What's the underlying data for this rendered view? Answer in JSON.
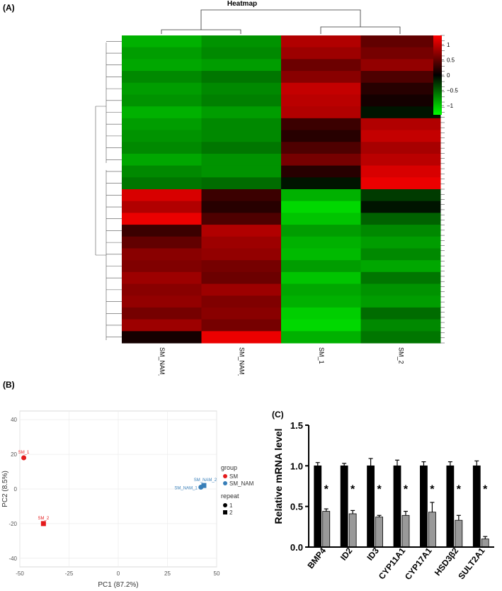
{
  "panels": {
    "a": "(A)",
    "b": "(B)",
    "c": "(C)"
  },
  "chart_data": [
    {
      "type": "heatmap",
      "title": "Heatmap",
      "columns": [
        "SM_NAM_1",
        "SM_NAM_2",
        "SM_1",
        "SM_2"
      ],
      "colorbar": {
        "ticks": [
          1,
          0.5,
          0,
          -0.5,
          -1
        ],
        "tick_labels": [
          "1",
          "0.5",
          "0",
          "−0.5",
          "−1"
        ],
        "range": [
          -1.3,
          1.3
        ]
      },
      "colors": {
        "high": "#ff0000",
        "mid": "#000000",
        "low": "#00ff00"
      },
      "row_blocks": [
        [
          -0.9,
          -0.75,
          0.9,
          0.5
        ],
        [
          -0.8,
          -0.7,
          0.8,
          0.6
        ],
        [
          -0.85,
          -0.8,
          0.55,
          0.75
        ],
        [
          -0.7,
          -0.6,
          0.7,
          0.4
        ],
        [
          -0.8,
          -0.7,
          1.0,
          0.2
        ],
        [
          -0.75,
          -0.65,
          0.95,
          0.1
        ],
        [
          -0.9,
          -0.8,
          0.9,
          -0.1
        ],
        [
          -0.8,
          -0.7,
          0.3,
          0.9
        ],
        [
          -0.75,
          -0.7,
          0.2,
          1.0
        ],
        [
          -0.7,
          -0.6,
          0.4,
          0.85
        ],
        [
          -0.85,
          -0.75,
          0.6,
          0.95
        ],
        [
          -0.7,
          -0.75,
          0.2,
          1.1
        ],
        [
          -0.6,
          -0.55,
          -0.1,
          1.2
        ],
        [
          1.1,
          0.3,
          -0.9,
          -0.3
        ],
        [
          0.9,
          0.2,
          -1.1,
          -0.1
        ],
        [
          1.2,
          0.4,
          -1.0,
          -0.5
        ],
        [
          0.3,
          0.9,
          -0.8,
          -0.7
        ],
        [
          0.5,
          0.8,
          -0.9,
          -0.8
        ],
        [
          0.7,
          0.75,
          -0.95,
          -0.7
        ],
        [
          0.65,
          0.6,
          -0.8,
          -0.85
        ],
        [
          0.8,
          0.55,
          -1.0,
          -0.6
        ],
        [
          0.7,
          0.8,
          -0.85,
          -0.75
        ],
        [
          0.75,
          0.65,
          -0.9,
          -0.8
        ],
        [
          0.6,
          0.7,
          -1.05,
          -0.55
        ],
        [
          0.8,
          0.6,
          -1.1,
          -0.7
        ],
        [
          0.1,
          1.2,
          -0.9,
          -0.6
        ]
      ]
    },
    {
      "type": "scatter",
      "xlabel": "PC1 (87.2%)",
      "ylabel": "PC2 (8.5%)",
      "xlim": [
        -50,
        50
      ],
      "ylim": [
        -45,
        45
      ],
      "xticks": [
        -50,
        -25,
        0,
        25,
        50
      ],
      "yticks": [
        -40,
        -20,
        0,
        20,
        40
      ],
      "grid": true,
      "legend": {
        "group_title": "group",
        "groups": [
          {
            "name": "SM",
            "color": "#e41a1c"
          },
          {
            "name": "SM_NAM",
            "color": "#377eb8"
          }
        ],
        "repeat_title": "repeat",
        "repeats": [
          {
            "name": "1",
            "shape": "circle"
          },
          {
            "name": "2",
            "shape": "square"
          }
        ]
      },
      "points": [
        {
          "label": "SM_1",
          "x": -48,
          "y": 18,
          "group": "SM",
          "repeat": "1"
        },
        {
          "label": "SM_2",
          "x": -38,
          "y": -20,
          "group": "SM",
          "repeat": "2"
        },
        {
          "label": "SM_NAM_1",
          "x": 42,
          "y": 1,
          "group": "SM_NAM",
          "repeat": "1"
        },
        {
          "label": "SM_NAM_2",
          "x": 43.5,
          "y": 2,
          "group": "SM_NAM",
          "repeat": "2"
        }
      ]
    },
    {
      "type": "bar",
      "ylabel": "Relative mRNA level",
      "ylim": [
        0,
        1.5
      ],
      "yticks": [
        0.0,
        0.5,
        1.0,
        1.5
      ],
      "ytick_labels": [
        "0.0",
        "0.5",
        "1.0",
        "1.5"
      ],
      "categories": [
        "BMP4",
        "ID2",
        "ID3",
        "CYP11A1",
        "CYP17A1",
        "HSD3β2",
        "SULT2A1"
      ],
      "series": [
        {
          "color": "#000000",
          "values": [
            1.0,
            1.0,
            1.0,
            1.0,
            1.0,
            1.0,
            1.0
          ],
          "errors": [
            0.04,
            0.03,
            0.09,
            0.07,
            0.05,
            0.05,
            0.06
          ]
        },
        {
          "color": "#999999",
          "values": [
            0.44,
            0.41,
            0.37,
            0.39,
            0.43,
            0.33,
            0.1
          ],
          "errors": [
            0.03,
            0.04,
            0.02,
            0.05,
            0.12,
            0.06,
            0.03
          ]
        }
      ],
      "annotation": "*"
    }
  ]
}
